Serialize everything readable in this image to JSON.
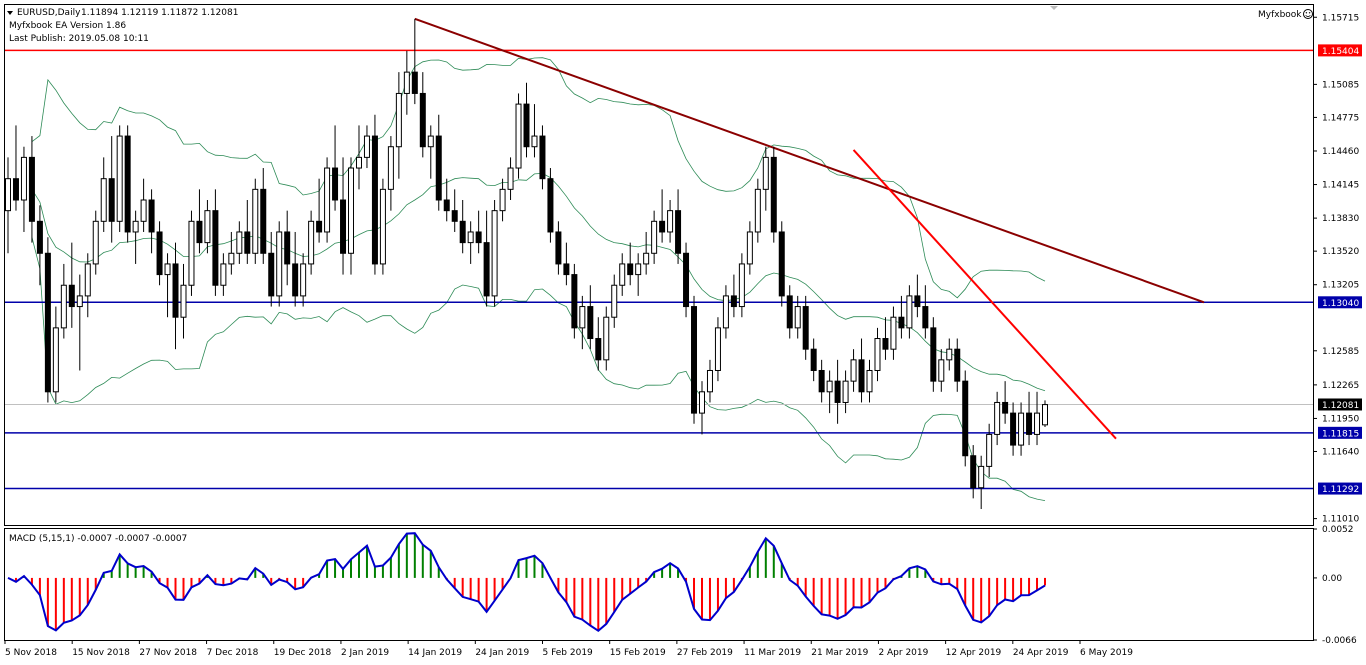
{
  "header": {
    "symbol_line": "EURUSD,Daily",
    "ohlc": "1.11894 1.12119 1.11872 1.12081",
    "ea_version": "Myfxbook EA Version 1.86",
    "last_publish": "Last Publish: 2019.05.08 10:11",
    "brand": "Myfxbook"
  },
  "colors": {
    "candle_bull": "#ffffff",
    "candle_bear": "#000000",
    "bollinger": "#2e8b57",
    "resistance": "#ff0000",
    "support": "#0000aa",
    "trend_main": "#8b0000",
    "trend_red": "#ff0000",
    "macd_line": "#0000cc",
    "macd_pos": "#008000",
    "macd_neg": "#ff0000"
  },
  "chart_data": [
    {
      "type": "candlestick",
      "title": "EURUSD,Daily",
      "y_ticks": [
        "1.15715",
        "1.15085",
        "1.14775",
        "1.14460",
        "1.14145",
        "1.13830",
        "1.13520",
        "1.13205",
        "1.12585",
        "1.12265",
        "1.11950",
        "1.11640",
        "1.11010"
      ],
      "ylim": [
        1.1095,
        1.1583
      ],
      "x_ticks": [
        "5 Nov 2018",
        "15 Nov 2018",
        "27 Nov 2018",
        "7 Dec 2018",
        "19 Dec 2018",
        "2 Jan 2019",
        "14 Jan 2019",
        "24 Jan 2019",
        "5 Feb 2019",
        "15 Feb 2019",
        "27 Feb 2019",
        "11 Mar 2019",
        "21 Mar 2019",
        "2 Apr 2019",
        "12 Apr 2019",
        "24 Apr 2019",
        "6 May 2019"
      ],
      "horizontal_levels": [
        {
          "value": 1.15404,
          "label": "1.15404",
          "color": "#ff0000"
        },
        {
          "value": 1.1304,
          "label": "1.13040",
          "color": "#0000aa"
        },
        {
          "value": 1.11815,
          "label": "1.11815",
          "color": "#0000aa"
        },
        {
          "value": 1.11292,
          "label": "1.11292",
          "color": "#0000aa"
        }
      ],
      "current_price": {
        "value": 1.12081,
        "label": "1.12081"
      },
      "trendlines": [
        {
          "from": [
            0,
            1.157
          ],
          "to": [
            1,
            1.1304
          ],
          "color": "#8b0000"
        },
        {
          "from": [
            0,
            1.1447
          ],
          "to": [
            1,
            1.1176
          ],
          "color": "#ff0000"
        }
      ],
      "candles": [
        [
          1.139,
          1.144,
          1.135,
          1.142
        ],
        [
          1.142,
          1.147,
          1.139,
          1.14
        ],
        [
          1.14,
          1.145,
          1.137,
          1.144
        ],
        [
          1.144,
          1.146,
          1.136,
          1.138
        ],
        [
          1.138,
          1.1395,
          1.132,
          1.135
        ],
        [
          1.135,
          1.1365,
          1.121,
          1.122
        ],
        [
          1.122,
          1.13,
          1.121,
          1.128
        ],
        [
          1.128,
          1.134,
          1.127,
          1.132
        ],
        [
          1.132,
          1.136,
          1.128,
          1.13
        ],
        [
          1.13,
          1.133,
          1.124,
          1.131
        ],
        [
          1.131,
          1.135,
          1.129,
          1.134
        ],
        [
          1.134,
          1.139,
          1.133,
          1.138
        ],
        [
          1.138,
          1.144,
          1.137,
          1.142
        ],
        [
          1.142,
          1.146,
          1.136,
          1.138
        ],
        [
          1.138,
          1.147,
          1.137,
          1.146
        ],
        [
          1.146,
          1.147,
          1.136,
          1.137
        ],
        [
          1.137,
          1.139,
          1.134,
          1.138
        ],
        [
          1.138,
          1.142,
          1.137,
          1.14
        ],
        [
          1.14,
          1.141,
          1.135,
          1.137
        ],
        [
          1.137,
          1.138,
          1.132,
          1.133
        ],
        [
          1.133,
          1.135,
          1.129,
          1.134
        ],
        [
          1.134,
          1.136,
          1.126,
          1.129
        ],
        [
          1.129,
          1.134,
          1.127,
          1.132
        ],
        [
          1.132,
          1.139,
          1.131,
          1.138
        ],
        [
          1.138,
          1.141,
          1.135,
          1.136
        ],
        [
          1.136,
          1.14,
          1.135,
          1.139
        ],
        [
          1.139,
          1.141,
          1.131,
          1.132
        ],
        [
          1.132,
          1.135,
          1.131,
          1.134
        ],
        [
          1.134,
          1.137,
          1.133,
          1.135
        ],
        [
          1.135,
          1.138,
          1.134,
          1.137
        ],
        [
          1.137,
          1.14,
          1.134,
          1.135
        ],
        [
          1.135,
          1.142,
          1.134,
          1.141
        ],
        [
          1.141,
          1.143,
          1.134,
          1.135
        ],
        [
          1.135,
          1.137,
          1.13,
          1.131
        ],
        [
          1.131,
          1.138,
          1.13,
          1.137
        ],
        [
          1.137,
          1.139,
          1.132,
          1.134
        ],
        [
          1.134,
          1.137,
          1.13,
          1.131
        ],
        [
          1.131,
          1.135,
          1.13,
          1.134
        ],
        [
          1.134,
          1.139,
          1.133,
          1.138
        ],
        [
          1.138,
          1.142,
          1.136,
          1.137
        ],
        [
          1.137,
          1.144,
          1.136,
          1.143
        ],
        [
          1.143,
          1.147,
          1.139,
          1.14
        ],
        [
          1.14,
          1.144,
          1.133,
          1.135
        ],
        [
          1.135,
          1.144,
          1.133,
          1.143
        ],
        [
          1.143,
          1.147,
          1.141,
          1.144
        ],
        [
          1.144,
          1.147,
          1.143,
          1.146
        ],
        [
          1.146,
          1.148,
          1.133,
          1.134
        ],
        [
          1.134,
          1.142,
          1.133,
          1.141
        ],
        [
          1.141,
          1.146,
          1.139,
          1.145
        ],
        [
          1.145,
          1.152,
          1.142,
          1.15
        ],
        [
          1.15,
          1.154,
          1.148,
          1.152
        ],
        [
          1.152,
          1.157,
          1.149,
          1.15
        ],
        [
          1.15,
          1.152,
          1.144,
          1.145
        ],
        [
          1.145,
          1.147,
          1.142,
          1.146
        ],
        [
          1.146,
          1.148,
          1.139,
          1.14
        ],
        [
          1.14,
          1.142,
          1.138,
          1.139
        ],
        [
          1.139,
          1.141,
          1.137,
          1.138
        ],
        [
          1.138,
          1.14,
          1.135,
          1.136
        ],
        [
          1.136,
          1.138,
          1.134,
          1.137
        ],
        [
          1.137,
          1.139,
          1.135,
          1.136
        ],
        [
          1.136,
          1.139,
          1.13,
          1.131
        ],
        [
          1.131,
          1.14,
          1.13,
          1.139
        ],
        [
          1.139,
          1.142,
          1.138,
          1.141
        ],
        [
          1.141,
          1.144,
          1.14,
          1.143
        ],
        [
          1.143,
          1.15,
          1.142,
          1.149
        ],
        [
          1.149,
          1.151,
          1.144,
          1.145
        ],
        [
          1.145,
          1.149,
          1.144,
          1.146
        ],
        [
          1.146,
          1.147,
          1.141,
          1.142
        ],
        [
          1.142,
          1.143,
          1.136,
          1.137
        ],
        [
          1.137,
          1.138,
          1.133,
          1.134
        ],
        [
          1.134,
          1.136,
          1.132,
          1.133
        ],
        [
          1.133,
          1.134,
          1.127,
          1.128
        ],
        [
          1.128,
          1.131,
          1.126,
          1.13
        ],
        [
          1.13,
          1.132,
          1.126,
          1.127
        ],
        [
          1.127,
          1.129,
          1.124,
          1.125
        ],
        [
          1.125,
          1.13,
          1.124,
          1.129
        ],
        [
          1.129,
          1.133,
          1.128,
          1.132
        ],
        [
          1.132,
          1.135,
          1.131,
          1.134
        ],
        [
          1.134,
          1.136,
          1.132,
          1.133
        ],
        [
          1.133,
          1.135,
          1.131,
          1.134
        ],
        [
          1.134,
          1.137,
          1.133,
          1.135
        ],
        [
          1.135,
          1.139,
          1.134,
          1.138
        ],
        [
          1.138,
          1.141,
          1.136,
          1.137
        ],
        [
          1.137,
          1.14,
          1.136,
          1.139
        ],
        [
          1.139,
          1.141,
          1.134,
          1.135
        ],
        [
          1.135,
          1.136,
          1.129,
          1.13
        ],
        [
          1.13,
          1.131,
          1.119,
          1.12
        ],
        [
          1.12,
          1.123,
          1.118,
          1.122
        ],
        [
          1.122,
          1.125,
          1.121,
          1.124
        ],
        [
          1.124,
          1.129,
          1.123,
          1.128
        ],
        [
          1.128,
          1.132,
          1.127,
          1.131
        ],
        [
          1.131,
          1.133,
          1.129,
          1.13
        ],
        [
          1.13,
          1.135,
          1.129,
          1.134
        ],
        [
          1.134,
          1.138,
          1.133,
          1.137
        ],
        [
          1.137,
          1.142,
          1.136,
          1.141
        ],
        [
          1.141,
          1.145,
          1.139,
          1.144
        ],
        [
          1.144,
          1.145,
          1.136,
          1.137
        ],
        [
          1.137,
          1.138,
          1.13,
          1.131
        ],
        [
          1.131,
          1.132,
          1.127,
          1.128
        ],
        [
          1.128,
          1.131,
          1.127,
          1.13
        ],
        [
          1.13,
          1.131,
          1.125,
          1.126
        ],
        [
          1.126,
          1.127,
          1.123,
          1.124
        ],
        [
          1.124,
          1.125,
          1.121,
          1.122
        ],
        [
          1.122,
          1.124,
          1.12,
          1.123
        ],
        [
          1.123,
          1.125,
          1.119,
          1.121
        ],
        [
          1.121,
          1.124,
          1.12,
          1.123
        ],
        [
          1.123,
          1.126,
          1.122,
          1.125
        ],
        [
          1.125,
          1.127,
          1.121,
          1.122
        ],
        [
          1.122,
          1.125,
          1.121,
          1.124
        ],
        [
          1.124,
          1.128,
          1.123,
          1.127
        ],
        [
          1.127,
          1.129,
          1.125,
          1.126
        ],
        [
          1.126,
          1.13,
          1.125,
          1.129
        ],
        [
          1.129,
          1.131,
          1.127,
          1.128
        ],
        [
          1.128,
          1.132,
          1.127,
          1.131
        ],
        [
          1.131,
          1.133,
          1.129,
          1.13
        ],
        [
          1.13,
          1.132,
          1.127,
          1.128
        ],
        [
          1.128,
          1.129,
          1.122,
          1.123
        ],
        [
          1.123,
          1.126,
          1.122,
          1.125
        ],
        [
          1.125,
          1.127,
          1.124,
          1.126
        ],
        [
          1.126,
          1.127,
          1.122,
          1.123
        ],
        [
          1.123,
          1.124,
          1.115,
          1.116
        ],
        [
          1.116,
          1.117,
          1.112,
          1.113
        ],
        [
          1.113,
          1.116,
          1.111,
          1.115
        ],
        [
          1.115,
          1.119,
          1.114,
          1.118
        ],
        [
          1.118,
          1.122,
          1.117,
          1.121
        ],
        [
          1.121,
          1.123,
          1.119,
          1.12
        ],
        [
          1.12,
          1.121,
          1.116,
          1.117
        ],
        [
          1.117,
          1.121,
          1.116,
          1.12
        ],
        [
          1.12,
          1.122,
          1.117,
          1.118
        ],
        [
          1.118,
          1.122,
          1.117,
          1.12
        ],
        [
          1.1189,
          1.1212,
          1.1187,
          1.1208
        ]
      ]
    },
    {
      "type": "histogram",
      "title": "MACD (5,15,1) -0.0007 -0.0007 -0.0007",
      "y_ticks": [
        "0.0052",
        "0.00",
        "-0.0066"
      ],
      "ylim": [
        -0.0066,
        0.0052
      ]
    }
  ]
}
